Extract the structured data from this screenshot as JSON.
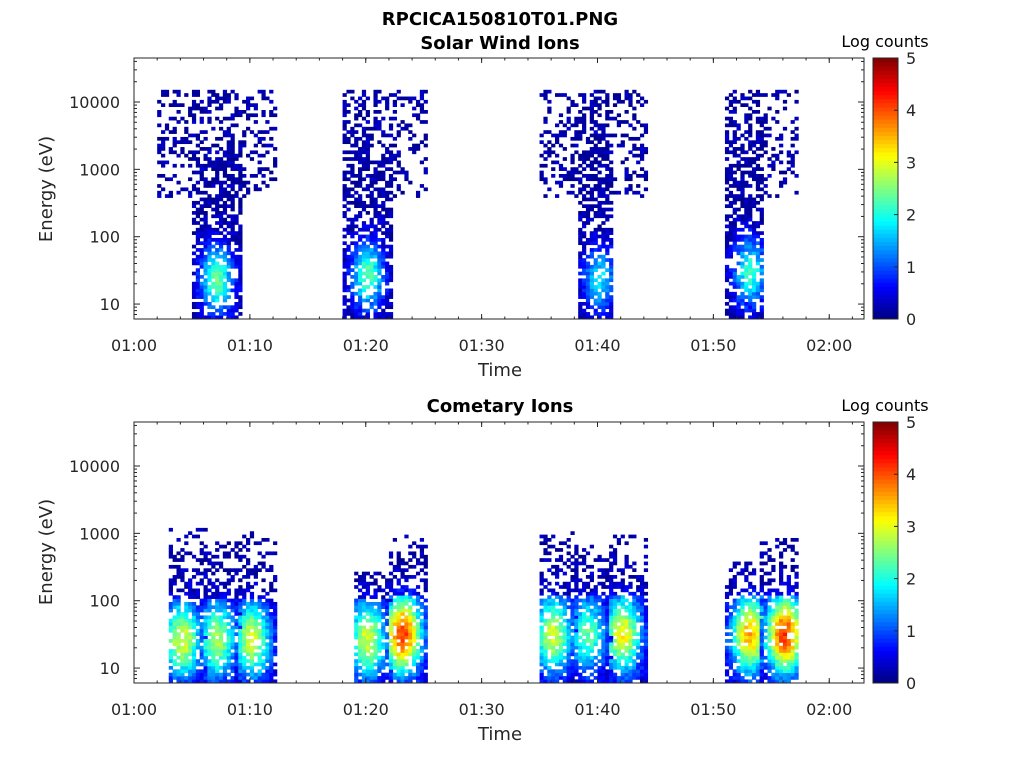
{
  "figure_title": "RPCICA150810T01.PNG",
  "colormap": "jet",
  "chart_data": [
    {
      "type": "heatmap",
      "title": "Solar Wind Ions",
      "xlabel": "Time",
      "ylabel": "Energy (eV)",
      "yscale": "log",
      "ylim": [
        6,
        45000
      ],
      "xlim": [
        "01:00",
        "02:03"
      ],
      "xticks": [
        "01:00",
        "01:10",
        "01:20",
        "01:30",
        "01:40",
        "01:50",
        "02:00"
      ],
      "yticks": [
        10,
        100,
        1000,
        10000
      ],
      "ytick_labels": [
        "10",
        "100",
        "1000",
        "10000"
      ],
      "colorbar": {
        "label": "Log counts",
        "range": [
          0,
          5
        ],
        "ticks": [
          "0",
          "1",
          "2",
          "3",
          "4",
          "5"
        ]
      },
      "bursts": [
        {
          "start": "01:02",
          "end": "01:12",
          "core_start": "01:05",
          "core_end": "01:09",
          "core_min_energy_ev": 6,
          "scatter_min_energy_ev": 350,
          "max_energy_ev": 14000,
          "peak_time": "01:07",
          "peak_energy_ev": 22,
          "peak_log_counts": 2.3
        },
        {
          "start": "01:18",
          "end": "01:25",
          "core_start": "01:18",
          "core_end": "01:22",
          "core_min_energy_ev": 6,
          "scatter_min_energy_ev": 350,
          "max_energy_ev": 14000,
          "peak_time": "01:20",
          "peak_energy_ev": 25,
          "peak_log_counts": 2.2
        },
        {
          "start": "01:35",
          "end": "01:44",
          "core_start": "01:38",
          "core_end": "01:41",
          "core_min_energy_ev": 6,
          "scatter_min_energy_ev": 350,
          "max_energy_ev": 14000,
          "peak_time": "01:40",
          "peak_energy_ev": 22,
          "peak_log_counts": 1.6
        },
        {
          "start": "01:51",
          "end": "01:57",
          "core_start": "01:51",
          "core_end": "01:54",
          "core_min_energy_ev": 6,
          "scatter_min_energy_ev": 350,
          "max_energy_ev": 14000,
          "peak_time": "01:53",
          "peak_energy_ev": 28,
          "peak_log_counts": 2.0
        }
      ]
    },
    {
      "type": "heatmap",
      "title": "Cometary Ions",
      "xlabel": "Time",
      "ylabel": "Energy (eV)",
      "yscale": "log",
      "ylim": [
        6,
        45000
      ],
      "xlim": [
        "01:00",
        "02:03"
      ],
      "xticks": [
        "01:00",
        "01:10",
        "01:20",
        "01:30",
        "01:40",
        "01:50",
        "02:00"
      ],
      "yticks": [
        10,
        100,
        1000,
        10000
      ],
      "ytick_labels": [
        "10",
        "100",
        "1000",
        "10000"
      ],
      "colorbar": {
        "label": "Log counts",
        "range": [
          0,
          5
        ],
        "ticks": [
          "0",
          "1",
          "2",
          "3",
          "4",
          "5"
        ]
      },
      "bursts": [
        {
          "start": "01:03",
          "end": "01:06",
          "max_energy_ev": 1100,
          "peak_time": "01:04",
          "peak_energy_ev": 25,
          "peak_log_counts": 2.8
        },
        {
          "start": "01:06",
          "end": "01:09",
          "max_energy_ev": 700,
          "peak_time": "01:07",
          "peak_energy_ev": 25,
          "peak_log_counts": 2.6
        },
        {
          "start": "01:09",
          "end": "01:12",
          "max_energy_ev": 1000,
          "peak_time": "01:10",
          "peak_energy_ev": 25,
          "peak_log_counts": 2.8
        },
        {
          "start": "01:19",
          "end": "01:22",
          "max_energy_ev": 250,
          "peak_time": "01:20",
          "peak_energy_ev": 25,
          "peak_log_counts": 2.8
        },
        {
          "start": "01:22",
          "end": "01:25",
          "max_energy_ev": 950,
          "peak_time": "01:23",
          "peak_energy_ev": 30,
          "peak_log_counts": 4.0
        },
        {
          "start": "01:35",
          "end": "01:38",
          "max_energy_ev": 1000,
          "peak_time": "01:36",
          "peak_energy_ev": 30,
          "peak_log_counts": 2.8
        },
        {
          "start": "01:38",
          "end": "01:41",
          "max_energy_ev": 600,
          "peak_time": "01:39",
          "peak_energy_ev": 30,
          "peak_log_counts": 2.2
        },
        {
          "start": "01:41",
          "end": "01:44",
          "max_energy_ev": 850,
          "peak_time": "01:42",
          "peak_energy_ev": 30,
          "peak_log_counts": 3.0
        },
        {
          "start": "01:51",
          "end": "01:54",
          "max_energy_ev": 350,
          "peak_time": "01:53",
          "peak_energy_ev": 30,
          "peak_log_counts": 3.4
        },
        {
          "start": "01:54",
          "end": "01:57",
          "max_energy_ev": 800,
          "peak_time": "01:56",
          "peak_energy_ev": 30,
          "peak_log_counts": 4.0
        }
      ]
    }
  ]
}
